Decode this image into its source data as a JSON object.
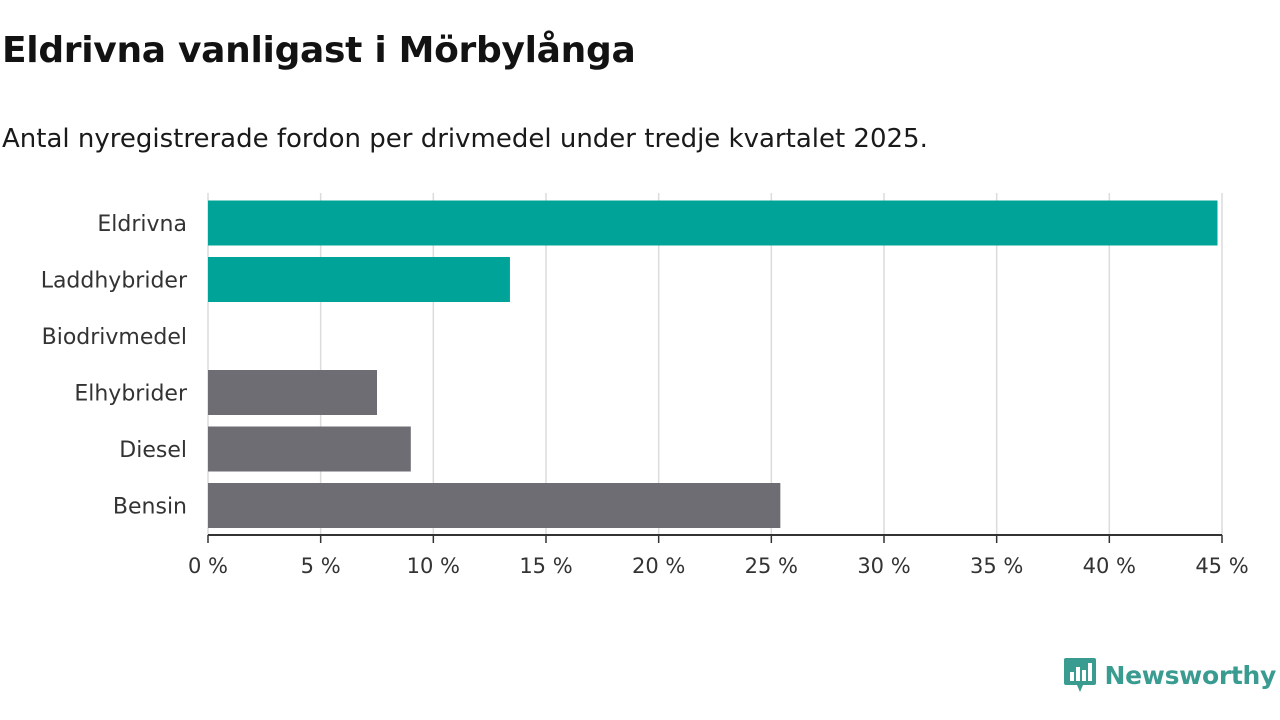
{
  "chart_data": {
    "type": "bar",
    "orientation": "horizontal",
    "title": "Eldrivna vanligast i Mörbylånga",
    "subtitle": "Antal nyregistrerade fordon per drivmedel under tredje kvartalet 2025.",
    "categories": [
      "Eldrivna",
      "Laddhybrider",
      "Biodrivmedel",
      "Elhybrider",
      "Diesel",
      "Bensin"
    ],
    "values": [
      44.8,
      13.4,
      0,
      7.5,
      9.0,
      25.4
    ],
    "bar_colors": [
      "#00a398",
      "#00a398",
      "#00a398",
      "#6e6d74",
      "#6e6d74",
      "#6e6d74"
    ],
    "xlim": [
      0,
      45
    ],
    "xticks": [
      0,
      5,
      10,
      15,
      20,
      25,
      30,
      35,
      40,
      45
    ],
    "xtick_labels": [
      "0 %",
      "5 %",
      "10 %",
      "15 %",
      "20 %",
      "25 %",
      "30 %",
      "35 %",
      "40 %",
      "45 %"
    ],
    "grid": true,
    "xlabel": "",
    "ylabel": ""
  },
  "branding": {
    "name": "Newsworthy",
    "color": "#3a9c91"
  },
  "colors": {
    "green": "#00a398",
    "gray": "#6e6d74",
    "grid": "#dcdcdc",
    "axis": "#333333"
  }
}
